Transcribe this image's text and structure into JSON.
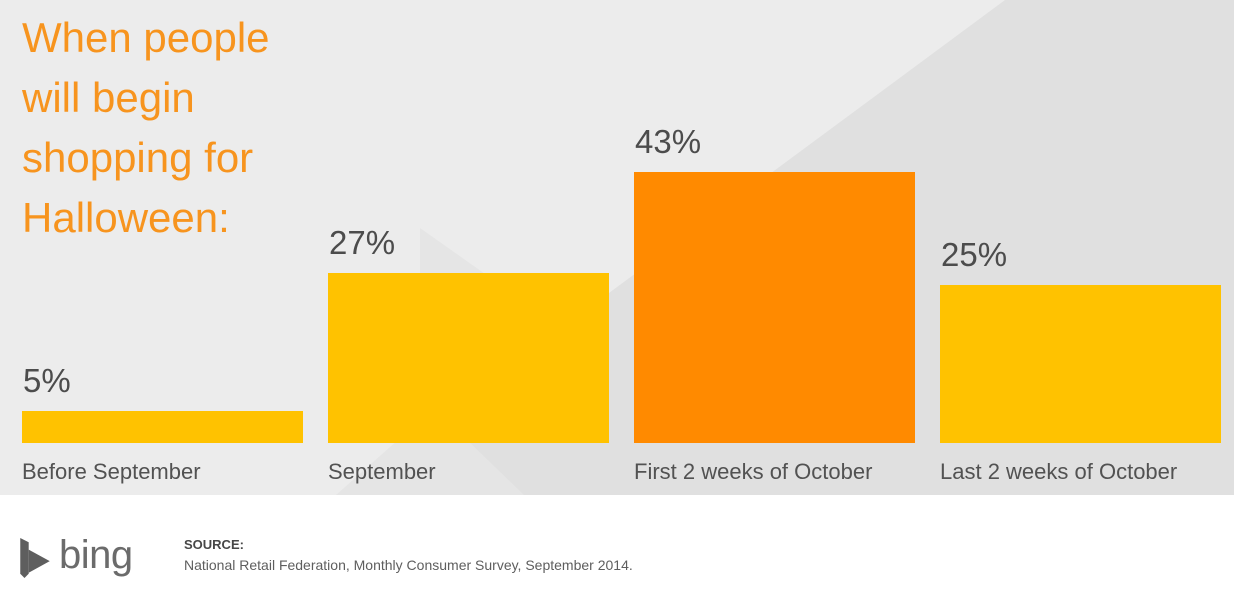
{
  "title": "When people will begin shopping for Halloween:",
  "chart_data": {
    "type": "bar",
    "orientation": "vertical",
    "title": "When people will begin shopping for Halloween:",
    "categories": [
      "Before September",
      "September",
      "First 2 weeks of October",
      "Last 2 weeks of October"
    ],
    "values": [
      5,
      27,
      43,
      25
    ],
    "value_labels": [
      "5%",
      "27%",
      "43%",
      "25%"
    ],
    "bar_colors": [
      "#FFC200",
      "#FFC200",
      "#FF8A00",
      "#FFC200"
    ],
    "ylim": [
      0,
      50
    ],
    "grid": false,
    "legend": false,
    "value_label_position": "above-bar",
    "xlabel": "",
    "ylabel": ""
  },
  "colors": {
    "accent_orange": "#F7941E",
    "bar_gold": "#FFC200",
    "bar_orange": "#FF8A00",
    "chart_bg": "#ECECEC",
    "chart_bg_dark": "#E0E0E0",
    "chart_bg_facet": "#E4E4E4",
    "footer_bg": "#FFFFFF",
    "percent_text": "#4C4C4C",
    "category_text": "#525252",
    "logo_gray": "#5E5E5E"
  },
  "footer": {
    "logo_text": "bing",
    "logo_icon": "bing-flag-icon",
    "source_label": "SOURCE:",
    "source_text": "National Retail Federation, Monthly Consumer Survey, September 2014."
  }
}
